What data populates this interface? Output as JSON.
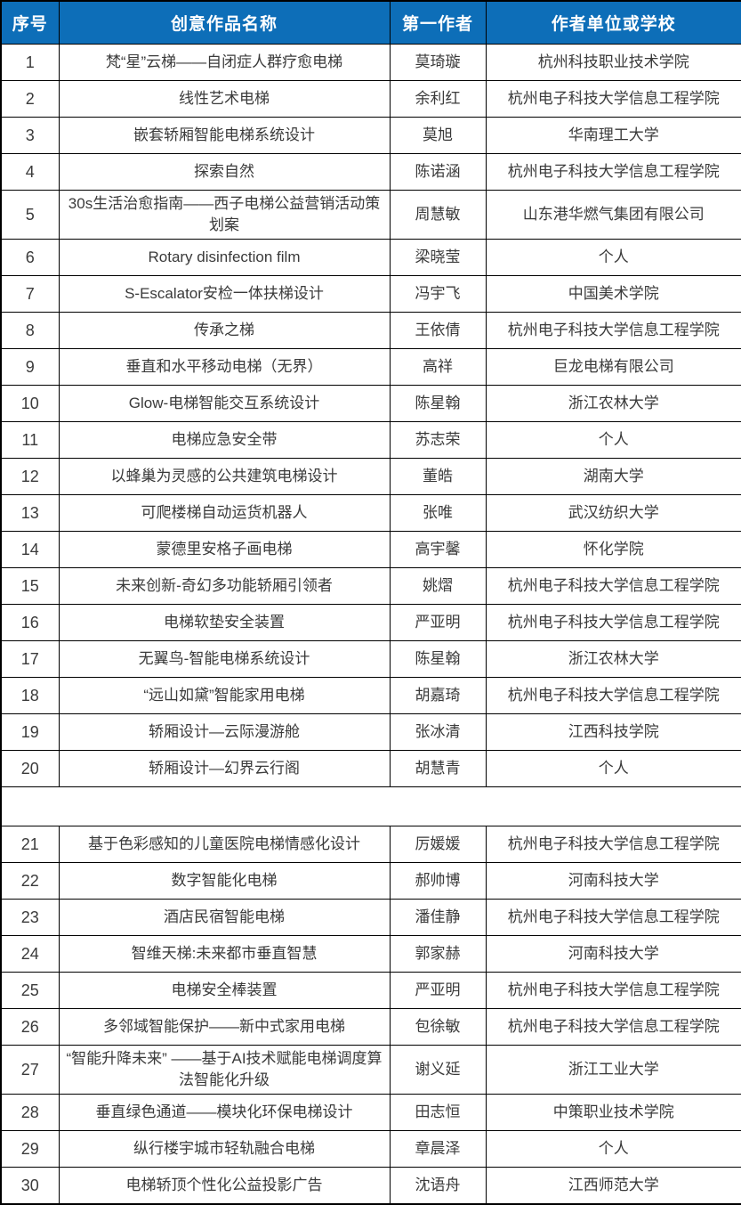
{
  "colors": {
    "header_bg": "#0D6EB8",
    "header_text": "#FFFFFF",
    "border": "#000000",
    "body_text": "#3A3A3A"
  },
  "table": {
    "columns": [
      {
        "key": "index",
        "label": "序号"
      },
      {
        "key": "title",
        "label": "创意作品名称"
      },
      {
        "key": "author",
        "label": "第一作者"
      },
      {
        "key": "org",
        "label": "作者单位或学校"
      }
    ],
    "rows": [
      {
        "index": "1",
        "title": "梵“星”云梯——自闭症人群疗愈电梯",
        "author": "莫琦璇",
        "org": "杭州科技职业技术学院"
      },
      {
        "index": "2",
        "title": "线性艺术电梯",
        "author": "余利红",
        "org": "杭州电子科技大学信息工程学院"
      },
      {
        "index": "3",
        "title": "嵌套轿厢智能电梯系统设计",
        "author": "莫旭",
        "org": "华南理工大学"
      },
      {
        "index": "4",
        "title": "探索自然",
        "author": "陈诺涵",
        "org": "杭州电子科技大学信息工程学院"
      },
      {
        "index": "5",
        "title": "30s生活治愈指南——西子电梯公益营销活动策划案",
        "author": "周慧敏",
        "org": "山东港华燃气集团有限公司"
      },
      {
        "index": "6",
        "title": "Rotary disinfection film",
        "author": "梁晓莹",
        "org": "个人"
      },
      {
        "index": "7",
        "title": "S-Escalator安检一体扶梯设计",
        "author": "冯宇飞",
        "org": "中国美术学院"
      },
      {
        "index": "8",
        "title": "传承之梯",
        "author": "王依倩",
        "org": "杭州电子科技大学信息工程学院"
      },
      {
        "index": "9",
        "title": "垂直和水平移动电梯（无界）",
        "author": "高祥",
        "org": "巨龙电梯有限公司"
      },
      {
        "index": "10",
        "title": "Glow-电梯智能交互系统设计",
        "author": "陈星翰",
        "org": "浙江农林大学"
      },
      {
        "index": "11",
        "title": "电梯应急安全带",
        "author": "苏志荣",
        "org": "个人"
      },
      {
        "index": "12",
        "title": "以蜂巢为灵感的公共建筑电梯设计",
        "author": "董皓",
        "org": "湖南大学"
      },
      {
        "index": "13",
        "title": "可爬楼梯自动运货机器人",
        "author": "张唯",
        "org": "武汉纺织大学"
      },
      {
        "index": "14",
        "title": "蒙德里安格子画电梯",
        "author": "高宇馨",
        "org": "怀化学院"
      },
      {
        "index": "15",
        "title": "未来创新-奇幻多功能轿厢引领者",
        "author": "姚熠",
        "org": "杭州电子科技大学信息工程学院"
      },
      {
        "index": "16",
        "title": "电梯软垫安全装置",
        "author": "严亚明",
        "org": "杭州电子科技大学信息工程学院"
      },
      {
        "index": "17",
        "title": "无翼鸟-智能电梯系统设计",
        "author": "陈星翰",
        "org": "浙江农林大学"
      },
      {
        "index": "18",
        "title": "“远山如黛”智能家用电梯",
        "author": "胡嘉琦",
        "org": "杭州电子科技大学信息工程学院"
      },
      {
        "index": "19",
        "title": "轿厢设计—云际漫游舱",
        "author": "张冰清",
        "org": "江西科技学院"
      },
      {
        "index": "20",
        "title": "轿厢设计—幻界云行阁",
        "author": "胡慧青",
        "org": "个人"
      },
      {
        "empty": true
      },
      {
        "index": "21",
        "title": "基于色彩感知的儿童医院电梯情感化设计",
        "author": "厉媛媛",
        "org": "杭州电子科技大学信息工程学院"
      },
      {
        "index": "22",
        "title": "数字智能化电梯",
        "author": "郝帅博",
        "org": "河南科技大学"
      },
      {
        "index": "23",
        "title": "酒店民宿智能电梯",
        "author": "潘佳静",
        "org": "杭州电子科技大学信息工程学院"
      },
      {
        "index": "24",
        "title": "智维天梯:未来都市垂直智慧",
        "author": "郭家赫",
        "org": "河南科技大学"
      },
      {
        "index": "25",
        "title": "电梯安全棒装置",
        "author": "严亚明",
        "org": "杭州电子科技大学信息工程学院"
      },
      {
        "index": "26",
        "title": "多邻域智能保护——新中式家用电梯",
        "author": "包徐敏",
        "org": "杭州电子科技大学信息工程学院"
      },
      {
        "index": "27",
        "title": "“智能升降未来” ——基于AI技术赋能电梯调度算法智能化升级",
        "author": "谢义延",
        "org": "浙江工业大学"
      },
      {
        "index": "28",
        "title": "垂直绿色通道——模块化环保电梯设计",
        "author": "田志恒",
        "org": "中策职业技术学院"
      },
      {
        "index": "29",
        "title": "纵行楼宇城市轻轨融合电梯",
        "author": "章晨泽",
        "org": "个人"
      },
      {
        "index": "30",
        "title": "电梯轿顶个性化公益投影广告",
        "author": "沈语舟",
        "org": "江西师范大学"
      }
    ]
  }
}
